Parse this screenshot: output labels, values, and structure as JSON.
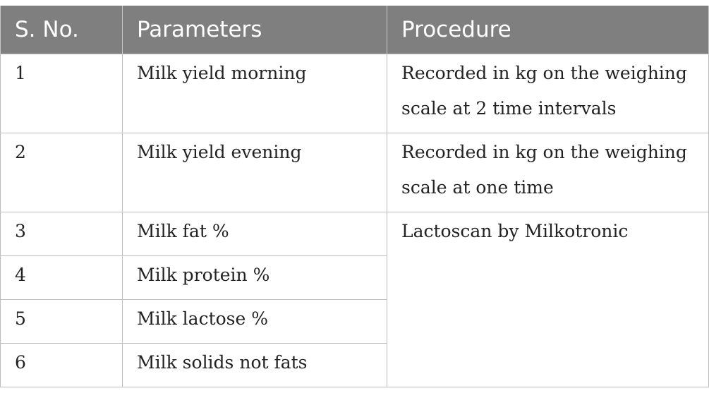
{
  "table": {
    "headers": [
      "S. No.",
      "Parameters",
      "Procedure"
    ],
    "rows": [
      {
        "no": "1",
        "parameter": "Milk yield morning",
        "procedure": "Recorded in kg on the weighing scale at 2 time intervals"
      },
      {
        "no": "2",
        "parameter": "Milk yield evening",
        "procedure": "Recorded in kg on the weighing scale at one time"
      },
      {
        "no": "3",
        "parameter": "Milk fat %",
        "procedure": "Lactoscan by Milkotronic"
      },
      {
        "no": "4",
        "parameter": "Milk protein %"
      },
      {
        "no": "5",
        "parameter": "Milk lactose %"
      },
      {
        "no": "6",
        "parameter": "Milk solids not fats"
      }
    ]
  }
}
